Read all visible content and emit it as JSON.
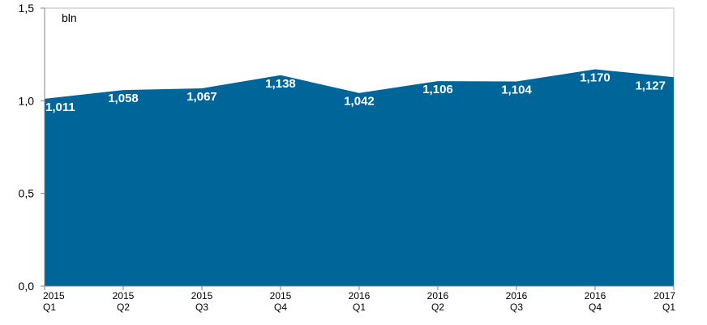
{
  "chart_data": {
    "type": "area",
    "unit_label": "bln",
    "categories": [
      {
        "year": "2015",
        "quarter": "Q1"
      },
      {
        "year": "2015",
        "quarter": "Q2"
      },
      {
        "year": "2015",
        "quarter": "Q3"
      },
      {
        "year": "2015",
        "quarter": "Q4"
      },
      {
        "year": "2016",
        "quarter": "Q1"
      },
      {
        "year": "2016",
        "quarter": "Q2"
      },
      {
        "year": "2016",
        "quarter": "Q3"
      },
      {
        "year": "2016",
        "quarter": "Q4"
      },
      {
        "year": "2017",
        "quarter": "Q1"
      }
    ],
    "values": [
      1.011,
      1.058,
      1.067,
      1.138,
      1.042,
      1.106,
      1.104,
      1.17,
      1.127
    ],
    "data_labels": [
      "1,011",
      "1,058",
      "1,067",
      "1,138",
      "1,042",
      "1,106",
      "1,104",
      "1,170",
      "1,127"
    ],
    "ylim": [
      0,
      1.5
    ],
    "yticks": [
      0,
      0.5,
      1.0,
      1.5
    ],
    "ytick_labels": [
      "0,0",
      "0,5",
      "1,0",
      "1,5"
    ],
    "grid": false,
    "legend": "none",
    "colors": {
      "area": "#006699",
      "axis": "#868686",
      "plot_border": "#bfbfbf"
    }
  }
}
